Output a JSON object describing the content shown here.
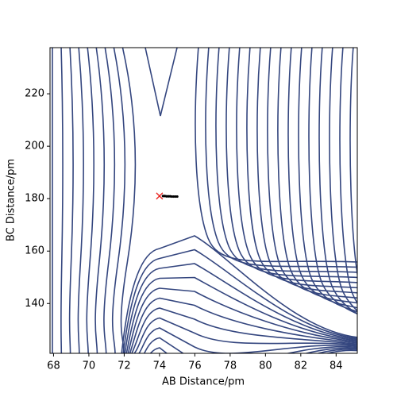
{
  "chart_data": {
    "type": "scatter",
    "x_label": "AB Distance/pm",
    "y_label": "BC Distance/pm",
    "xlim": [
      67.8,
      85.2
    ],
    "ylim": [
      121,
      237.6
    ],
    "xticks": [
      68,
      70,
      72,
      74,
      76,
      78,
      80,
      82,
      84
    ],
    "yticks": [
      140,
      160,
      180,
      200,
      220
    ],
    "contour_color": "#34467f",
    "series": [
      {
        "marker": "x",
        "color": "#e8201c",
        "x": [
          74.0
        ],
        "values": [
          181.0
        ]
      },
      {
        "marker": "dot",
        "color": "#000000",
        "x": [
          74.2,
          74.3,
          74.4,
          74.5,
          74.6,
          74.7,
          74.8,
          74.9,
          75.0
        ],
        "values": [
          181.0,
          181.0,
          180.9,
          180.9,
          180.9,
          180.8,
          180.8,
          180.8,
          180.8
        ]
      }
    ]
  }
}
